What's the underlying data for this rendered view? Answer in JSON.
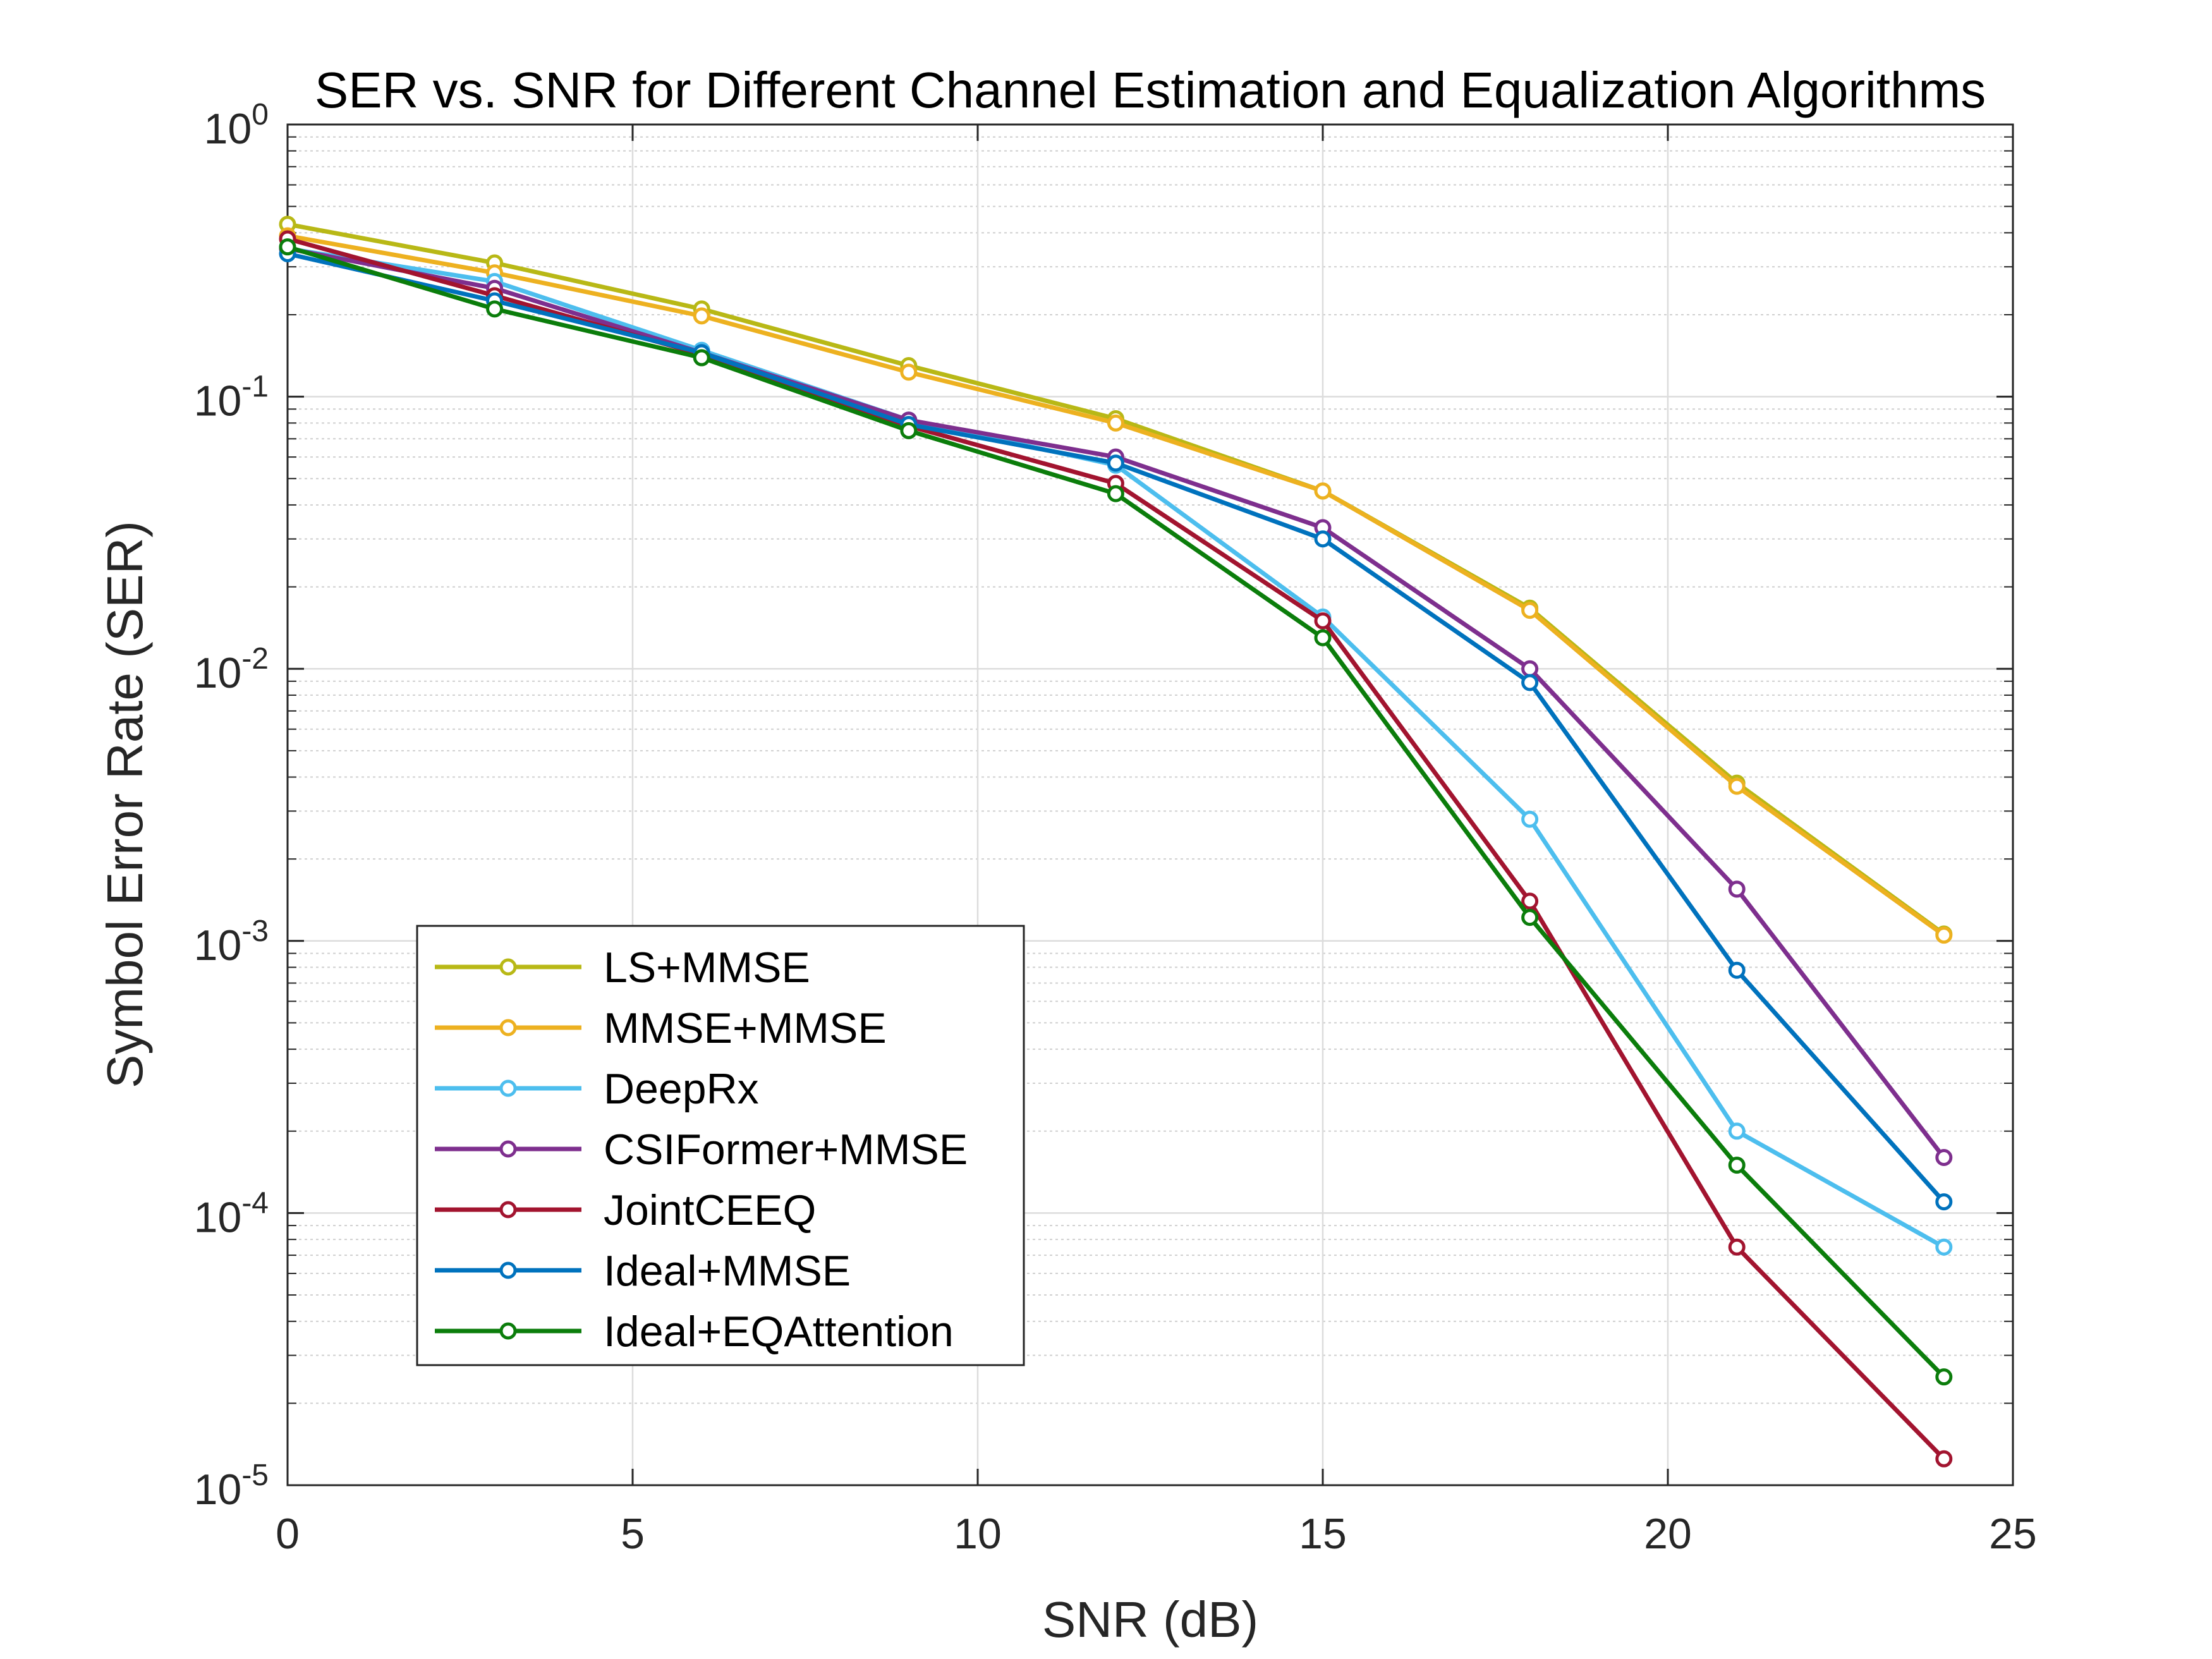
{
  "chart_data": {
    "type": "line",
    "title": "SER vs. SNR for Different Channel Estimation and Equalization Algorithms",
    "xlabel": "SNR (dB)",
    "ylabel": "Symbol Error Rate (SER)",
    "xlim": [
      0,
      25
    ],
    "ylim": [
      1e-05,
      1
    ],
    "yscale": "log",
    "grid": true,
    "minor_grid": true,
    "legend_position": "bottom-left",
    "x_ticks": [
      {
        "value": 0,
        "label": "0"
      },
      {
        "value": 5,
        "label": "5"
      },
      {
        "value": 10,
        "label": "10"
      },
      {
        "value": 15,
        "label": "15"
      },
      {
        "value": 20,
        "label": "20"
      },
      {
        "value": 25,
        "label": "25"
      }
    ],
    "y_ticks": [
      {
        "value": 1,
        "base": "10",
        "exp": "0"
      },
      {
        "value": 0.1,
        "base": "10",
        "exp": "-1"
      },
      {
        "value": 0.01,
        "base": "10",
        "exp": "-2"
      },
      {
        "value": 0.001,
        "base": "10",
        "exp": "-3"
      },
      {
        "value": 0.0001,
        "base": "10",
        "exp": "-4"
      },
      {
        "value": 1e-05,
        "base": "10",
        "exp": "-5"
      }
    ],
    "x": [
      0,
      3,
      6,
      9,
      12,
      15,
      18,
      21,
      24
    ],
    "series": [
      {
        "name": "LS+MMSE",
        "color": "#B8B816",
        "values": [
          0.43,
          0.31,
          0.21,
          0.13,
          0.083,
          0.045,
          0.0167,
          0.0038,
          0.00106
        ]
      },
      {
        "name": "MMSE+MMSE",
        "color": "#EDB120",
        "values": [
          0.39,
          0.285,
          0.198,
          0.123,
          0.08,
          0.045,
          0.0164,
          0.0037,
          0.00105
        ]
      },
      {
        "name": "DeepRx",
        "color": "#4DBEEE",
        "values": [
          0.35,
          0.265,
          0.148,
          0.082,
          0.056,
          0.0155,
          0.0028,
          0.0002,
          7.5e-05
        ]
      },
      {
        "name": "CSIFormer+MMSE",
        "color": "#7E2F8E",
        "values": [
          0.35,
          0.25,
          0.145,
          0.082,
          0.06,
          0.033,
          0.01,
          0.00155,
          0.00016
        ]
      },
      {
        "name": "JointCEEQ",
        "color": "#A2142F",
        "values": [
          0.38,
          0.235,
          0.143,
          0.078,
          0.048,
          0.015,
          0.0014,
          7.5e-05,
          1.25e-05
        ]
      },
      {
        "name": "Ideal+MMSE",
        "color": "#0072BD",
        "values": [
          0.335,
          0.225,
          0.145,
          0.079,
          0.057,
          0.03,
          0.0089,
          0.00078,
          0.00011
        ]
      },
      {
        "name": "Ideal+EQAttention",
        "color": "#0B7D0B",
        "values": [
          0.355,
          0.21,
          0.139,
          0.075,
          0.044,
          0.013,
          0.00122,
          0.00015,
          2.5e-05
        ]
      }
    ]
  }
}
